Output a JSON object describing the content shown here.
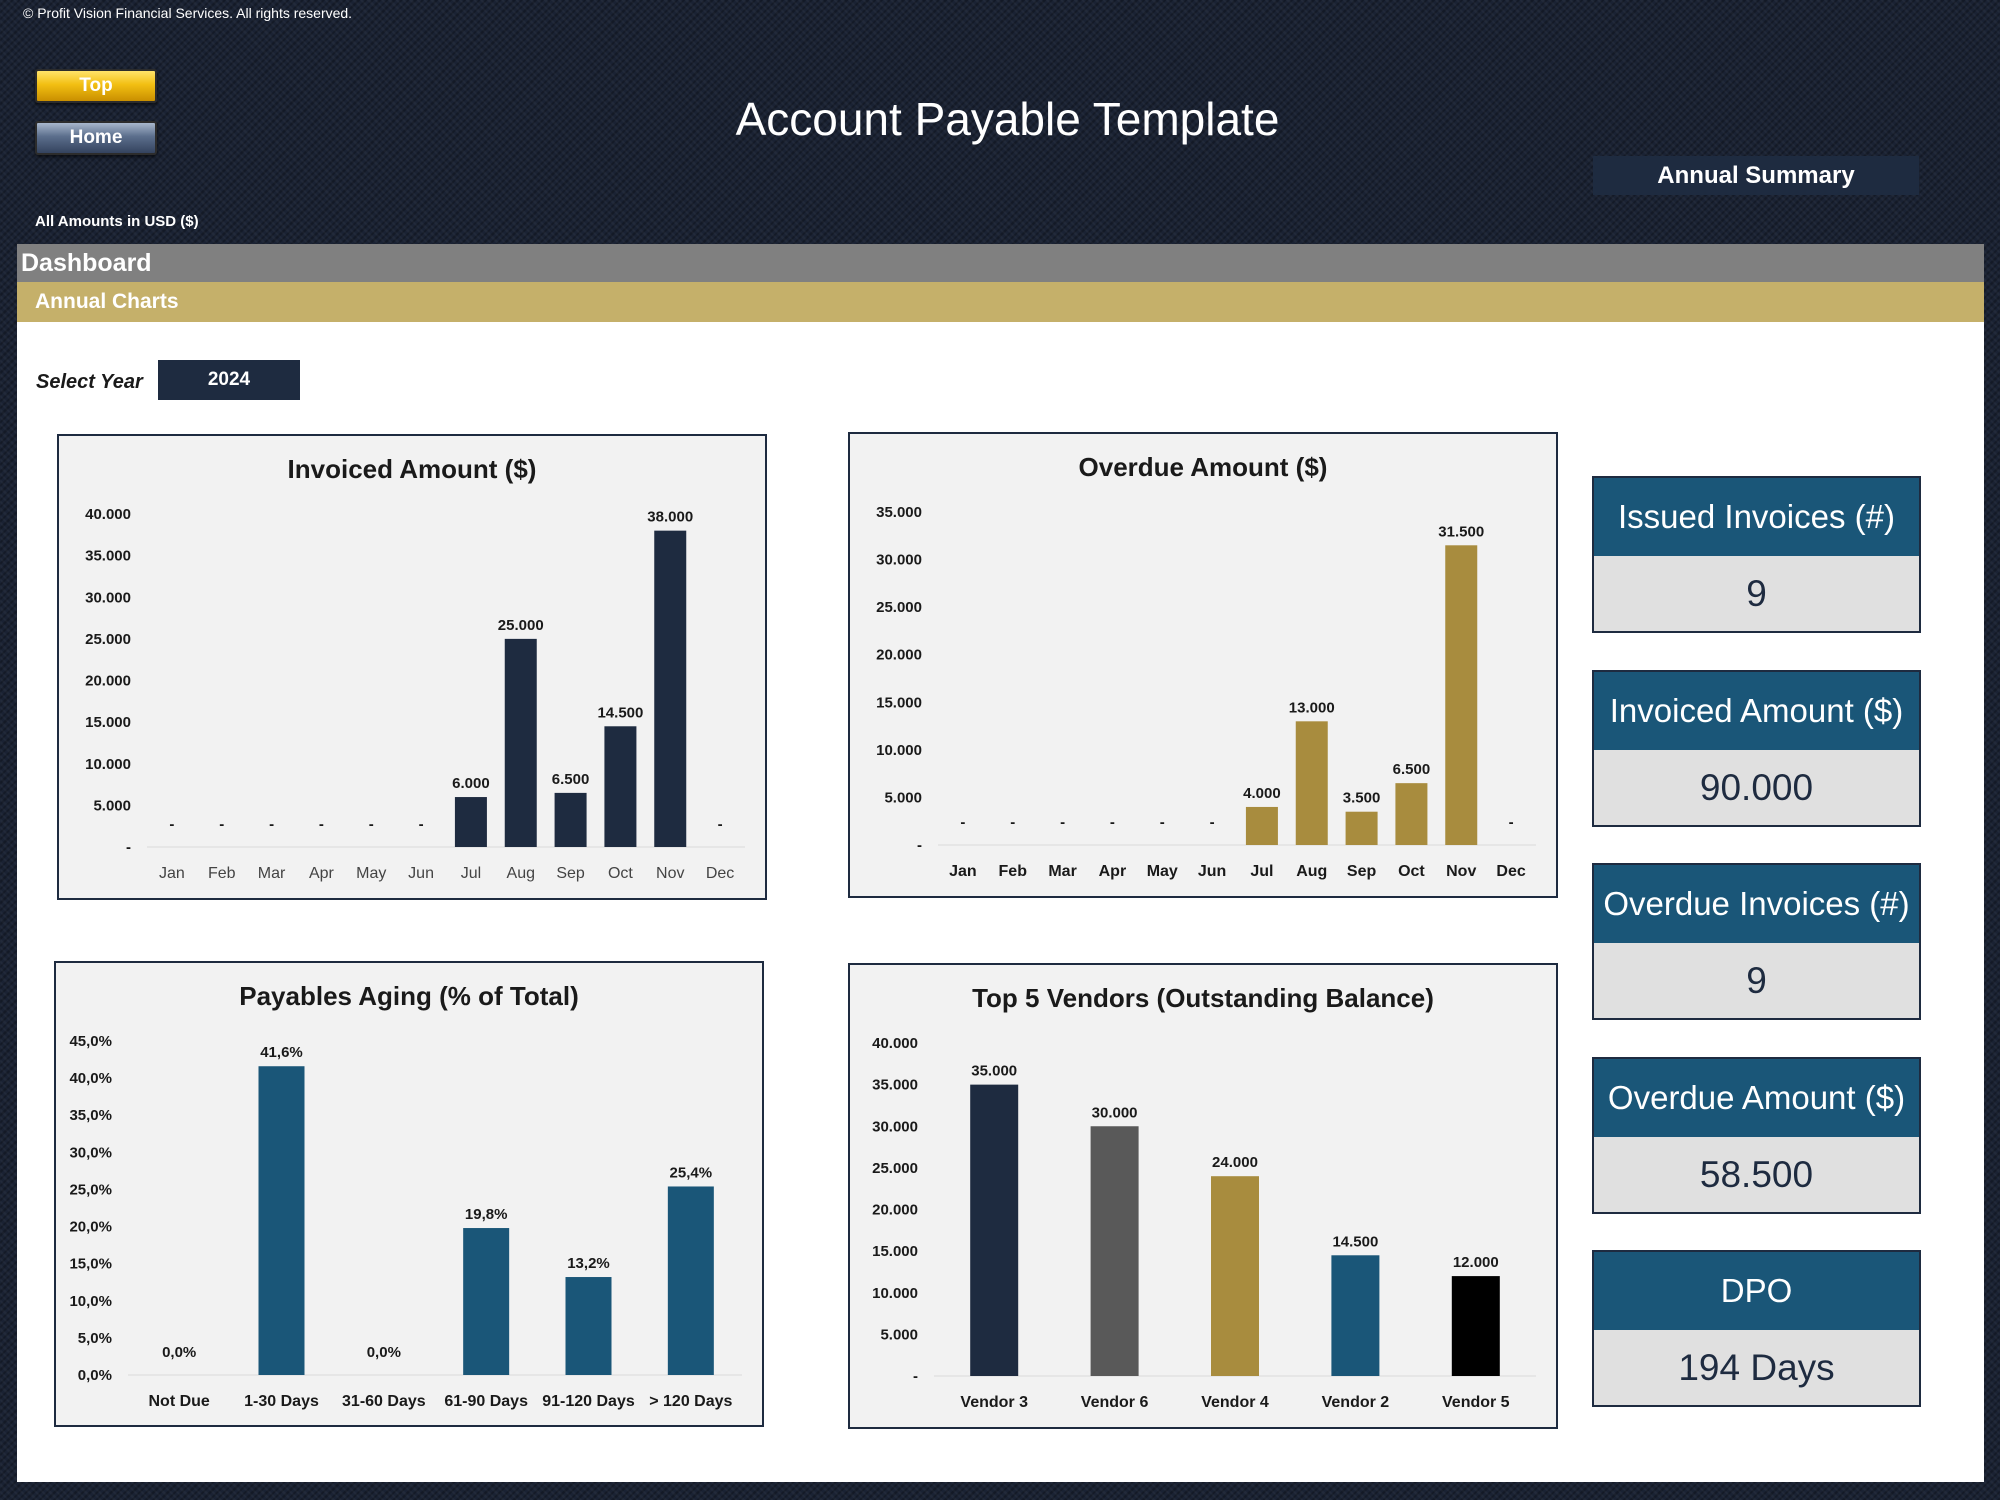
{
  "copyright": "© Profit Vision Financial Services. All rights reserved.",
  "nav": {
    "top_label": "Top",
    "home_label": "Home"
  },
  "page_title": "Account Payable Template",
  "currency_note": "All Amounts in  USD ($)",
  "section_title": "Dashboard",
  "subsection_title": "Annual Charts",
  "year_selector": {
    "label": "Select Year",
    "value": "2024"
  },
  "summary": {
    "title": "Annual Summary",
    "cards": [
      {
        "label": "Issued Invoices (#)",
        "value": "9"
      },
      {
        "label": "Invoiced Amount ($)",
        "value": "90.000"
      },
      {
        "label": "Overdue Invoices (#)",
        "value": "9"
      },
      {
        "label": "Overdue Amount ($)",
        "value": "58.500"
      },
      {
        "label": "DPO",
        "value": "194 Days"
      }
    ]
  },
  "colors": {
    "navy": "#1e2b40",
    "gold": "#a88c3e",
    "teal": "#1a5678",
    "gray": "#595959",
    "black": "#000000"
  },
  "chart_data": [
    {
      "id": "invoiced",
      "type": "bar",
      "title": "Invoiced Amount ($)",
      "categories": [
        "Jan",
        "Feb",
        "Mar",
        "Apr",
        "May",
        "Jun",
        "Jul",
        "Aug",
        "Sep",
        "Oct",
        "Nov",
        "Dec"
      ],
      "values": [
        0,
        0,
        0,
        0,
        0,
        0,
        6000,
        25000,
        6500,
        14500,
        38000,
        0
      ],
      "value_labels": [
        "-",
        "-",
        "-",
        "-",
        "-",
        "-",
        "6.000",
        "25.000",
        "6.500",
        "14.500",
        "38.000",
        "-"
      ],
      "ylim": [
        0,
        40000
      ],
      "yticks": [
        "-",
        "5.000",
        "10.000",
        "15.000",
        "20.000",
        "25.000",
        "30.000",
        "35.000",
        "40.000"
      ],
      "colors": [
        "#1e2b40"
      ],
      "bold_x": false
    },
    {
      "id": "overdue",
      "type": "bar",
      "title": "Overdue Amount ($)",
      "categories": [
        "Jan",
        "Feb",
        "Mar",
        "Apr",
        "May",
        "Jun",
        "Jul",
        "Aug",
        "Sep",
        "Oct",
        "Nov",
        "Dec"
      ],
      "values": [
        0,
        0,
        0,
        0,
        0,
        0,
        4000,
        13000,
        3500,
        6500,
        31500,
        0
      ],
      "value_labels": [
        "-",
        "-",
        "-",
        "-",
        "-",
        "-",
        "4.000",
        "13.000",
        "3.500",
        "6.500",
        "31.500",
        "-"
      ],
      "ylim": [
        0,
        35000
      ],
      "yticks": [
        "-",
        "5.000",
        "10.000",
        "15.000",
        "20.000",
        "25.000",
        "30.000",
        "35.000"
      ],
      "colors": [
        "#a88c3e"
      ],
      "bold_x": true
    },
    {
      "id": "aging",
      "type": "bar",
      "title": "Payables Aging (% of Total)",
      "categories": [
        "Not Due",
        "1-30 Days",
        "31-60 Days",
        "61-90 Days",
        "91-120 Days",
        "> 120 Days"
      ],
      "values": [
        0,
        41.6,
        0,
        19.8,
        13.2,
        25.4
      ],
      "value_labels": [
        "0,0%",
        "41,6%",
        "0,0%",
        "19,8%",
        "13,2%",
        "25,4%"
      ],
      "ylim": [
        0,
        45
      ],
      "yticks": [
        "0,0%",
        "5,0%",
        "10,0%",
        "15,0%",
        "20,0%",
        "25,0%",
        "30,0%",
        "35,0%",
        "40,0%",
        "45,0%"
      ],
      "colors": [
        "#1a5678"
      ],
      "bold_x": true
    },
    {
      "id": "vendors",
      "type": "bar",
      "title": "Top 5 Vendors (Outstanding Balance)",
      "categories": [
        "Vendor 3",
        "Vendor 6",
        "Vendor 4",
        "Vendor 2",
        "Vendor 5"
      ],
      "values": [
        35000,
        30000,
        24000,
        14500,
        12000
      ],
      "value_labels": [
        "35.000",
        "30.000",
        "24.000",
        "14.500",
        "12.000"
      ],
      "ylim": [
        0,
        40000
      ],
      "yticks": [
        "-",
        "5.000",
        "10.000",
        "15.000",
        "20.000",
        "25.000",
        "30.000",
        "35.000",
        "40.000"
      ],
      "colors": [
        "#1e2b40",
        "#595959",
        "#a88c3e",
        "#1a5678",
        "#000000"
      ],
      "bold_x": true
    }
  ]
}
